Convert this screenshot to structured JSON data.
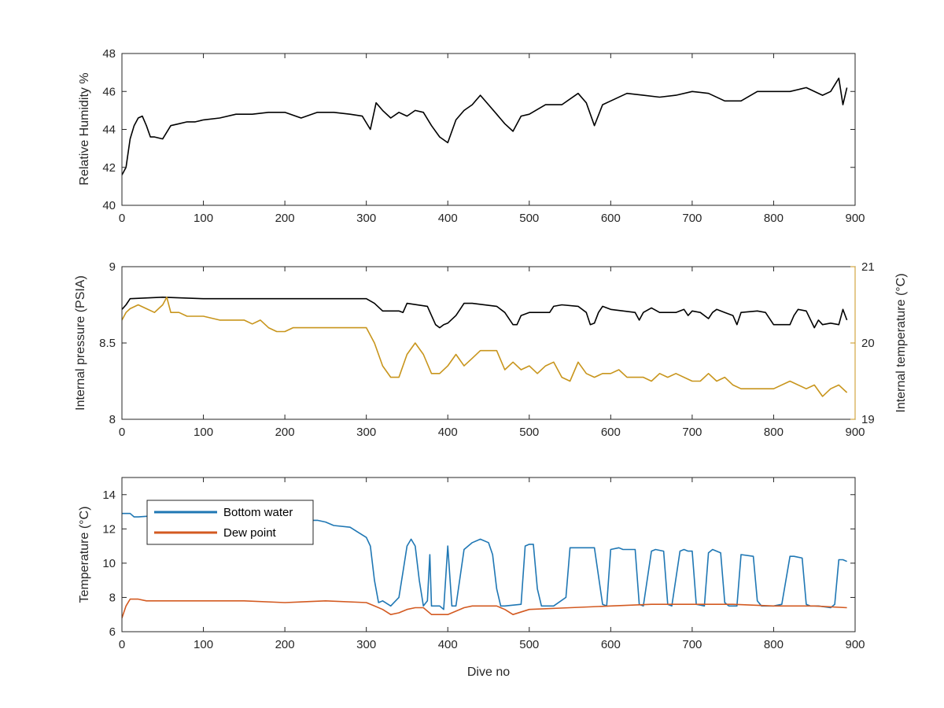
{
  "colors": {
    "black": "#000000",
    "gold": "#c8951c",
    "blue": "#1f77b4",
    "orange": "#d35a21",
    "axis": "#262626"
  },
  "chart_data": [
    {
      "type": "line",
      "xlim": [
        0,
        900
      ],
      "ylim": [
        40,
        48
      ],
      "xticks": [
        0,
        100,
        200,
        300,
        400,
        500,
        600,
        700,
        800,
        900
      ],
      "yticks": [
        40,
        42,
        44,
        46,
        48
      ],
      "xlabel": "",
      "ylabel": "Relative Humidity %",
      "grid": false,
      "series": [
        {
          "color": "#000000",
          "x": [
            0,
            5,
            10,
            15,
            20,
            25,
            30,
            35,
            40,
            50,
            60,
            70,
            80,
            90,
            100,
            120,
            140,
            160,
            180,
            200,
            220,
            240,
            260,
            280,
            295,
            305,
            312,
            320,
            330,
            340,
            350,
            360,
            370,
            380,
            390,
            400,
            410,
            420,
            430,
            440,
            450,
            460,
            470,
            480,
            490,
            500,
            520,
            540,
            560,
            570,
            580,
            590,
            600,
            620,
            640,
            660,
            680,
            700,
            720,
            740,
            760,
            780,
            800,
            820,
            840,
            860,
            870,
            880,
            885,
            890
          ],
          "y": [
            41.6,
            42.0,
            43.5,
            44.2,
            44.6,
            44.7,
            44.2,
            43.6,
            43.6,
            43.5,
            44.2,
            44.3,
            44.4,
            44.4,
            44.5,
            44.6,
            44.8,
            44.8,
            44.9,
            44.9,
            44.6,
            44.9,
            44.9,
            44.8,
            44.7,
            44.0,
            45.4,
            45.0,
            44.6,
            44.9,
            44.7,
            45.0,
            44.9,
            44.2,
            43.6,
            43.3,
            44.5,
            45.0,
            45.3,
            45.8,
            45.3,
            44.8,
            44.3,
            43.9,
            44.7,
            44.8,
            45.3,
            45.3,
            45.9,
            45.4,
            44.2,
            45.3,
            45.5,
            45.9,
            45.8,
            45.7,
            45.8,
            46.0,
            45.9,
            45.5,
            45.5,
            46.0,
            46.0,
            46.0,
            46.2,
            45.8,
            46.0,
            46.7,
            45.3,
            46.2
          ]
        }
      ]
    },
    {
      "type": "line",
      "xlim": [
        0,
        900
      ],
      "ylim": [
        8,
        9
      ],
      "ylim_right": [
        19,
        21
      ],
      "xticks": [
        0,
        100,
        200,
        300,
        400,
        500,
        600,
        700,
        800,
        900
      ],
      "yticks": [
        8,
        8.5,
        9
      ],
      "yticks_right": [
        19,
        20,
        21
      ],
      "xlabel": "",
      "ylabel": "Internal pressure (PSIA)",
      "ylabel_right": "Internal temperature (°C)",
      "grid": false,
      "series": [
        {
          "color": "#000000",
          "axis": "left",
          "x": [
            0,
            5,
            10,
            50,
            100,
            150,
            200,
            250,
            300,
            310,
            320,
            340,
            345,
            350,
            375,
            380,
            385,
            390,
            395,
            400,
            410,
            415,
            420,
            430,
            460,
            470,
            480,
            485,
            490,
            500,
            525,
            530,
            540,
            560,
            570,
            575,
            580,
            585,
            590,
            600,
            630,
            635,
            640,
            650,
            660,
            680,
            690,
            695,
            700,
            710,
            720,
            725,
            730,
            740,
            750,
            755,
            760,
            780,
            790,
            800,
            810,
            820,
            825,
            830,
            840,
            850,
            855,
            860,
            870,
            880,
            885,
            890
          ],
          "y": [
            8.72,
            8.75,
            8.79,
            8.8,
            8.79,
            8.79,
            8.79,
            8.79,
            8.79,
            8.76,
            8.71,
            8.71,
            8.7,
            8.76,
            8.74,
            8.68,
            8.62,
            8.6,
            8.62,
            8.63,
            8.68,
            8.72,
            8.76,
            8.76,
            8.74,
            8.7,
            8.62,
            8.62,
            8.68,
            8.7,
            8.7,
            8.74,
            8.75,
            8.74,
            8.7,
            8.62,
            8.63,
            8.7,
            8.74,
            8.72,
            8.7,
            8.65,
            8.7,
            8.73,
            8.7,
            8.7,
            8.72,
            8.68,
            8.71,
            8.7,
            8.66,
            8.7,
            8.72,
            8.7,
            8.68,
            8.62,
            8.7,
            8.71,
            8.7,
            8.62,
            8.62,
            8.62,
            8.68,
            8.72,
            8.71,
            8.6,
            8.65,
            8.62,
            8.63,
            8.62,
            8.72,
            8.65
          ]
        },
        {
          "color": "#c8951c",
          "axis": "right",
          "x": [
            0,
            5,
            10,
            20,
            30,
            40,
            50,
            55,
            60,
            70,
            80,
            100,
            120,
            140,
            150,
            160,
            170,
            180,
            190,
            200,
            210,
            250,
            290,
            300,
            310,
            320,
            330,
            340,
            350,
            360,
            370,
            380,
            390,
            400,
            410,
            420,
            430,
            440,
            450,
            460,
            470,
            480,
            490,
            500,
            510,
            520,
            530,
            540,
            550,
            560,
            570,
            580,
            590,
            600,
            610,
            620,
            630,
            640,
            650,
            660,
            670,
            680,
            700,
            710,
            720,
            730,
            740,
            750,
            760,
            780,
            800,
            820,
            840,
            850,
            860,
            870,
            880,
            890
          ],
          "y": [
            20.3,
            20.4,
            20.45,
            20.5,
            20.45,
            20.4,
            20.5,
            20.6,
            20.4,
            20.4,
            20.35,
            20.35,
            20.3,
            20.3,
            20.3,
            20.25,
            20.3,
            20.2,
            20.15,
            20.15,
            20.2,
            20.2,
            20.2,
            20.2,
            20.0,
            19.7,
            19.55,
            19.55,
            19.85,
            20.0,
            19.85,
            19.6,
            19.6,
            19.7,
            19.85,
            19.7,
            19.8,
            19.9,
            19.9,
            19.9,
            19.65,
            19.75,
            19.65,
            19.7,
            19.6,
            19.7,
            19.75,
            19.55,
            19.5,
            19.75,
            19.6,
            19.55,
            19.6,
            19.6,
            19.65,
            19.55,
            19.55,
            19.55,
            19.5,
            19.6,
            19.55,
            19.6,
            19.5,
            19.5,
            19.6,
            19.5,
            19.55,
            19.45,
            19.4,
            19.4,
            19.4,
            19.5,
            19.4,
            19.45,
            19.3,
            19.4,
            19.45,
            19.35
          ]
        }
      ]
    },
    {
      "type": "line",
      "xlim": [
        0,
        900
      ],
      "ylim": [
        6,
        15
      ],
      "xticks": [
        0,
        100,
        200,
        300,
        400,
        500,
        600,
        700,
        800,
        900
      ],
      "yticks": [
        6,
        8,
        10,
        12,
        14
      ],
      "xlabel": "Dive no",
      "ylabel": "Temperature (°C)",
      "legend": "top-left",
      "grid": false,
      "series": [
        {
          "name": "Bottom water",
          "color": "#1f77b4",
          "x": [
            0,
            10,
            15,
            20,
            50,
            100,
            150,
            200,
            220,
            240,
            250,
            260,
            280,
            290,
            300,
            305,
            310,
            315,
            320,
            330,
            340,
            345,
            350,
            355,
            360,
            365,
            370,
            375,
            378,
            380,
            385,
            390,
            395,
            400,
            405,
            410,
            420,
            430,
            440,
            450,
            455,
            460,
            465,
            470,
            490,
            495,
            500,
            505,
            510,
            515,
            520,
            530,
            545,
            550,
            555,
            560,
            580,
            590,
            595,
            600,
            610,
            615,
            630,
            635,
            640,
            650,
            655,
            665,
            670,
            675,
            685,
            690,
            695,
            700,
            705,
            715,
            720,
            725,
            735,
            740,
            745,
            755,
            760,
            775,
            780,
            785,
            795,
            800,
            810,
            820,
            825,
            835,
            840,
            845,
            855,
            870,
            875,
            880,
            885,
            890
          ],
          "y": [
            12.9,
            12.9,
            12.7,
            12.7,
            12.8,
            12.7,
            12.7,
            12.6,
            12.5,
            12.5,
            12.4,
            12.2,
            12.1,
            11.8,
            11.5,
            11.0,
            9.0,
            7.7,
            7.8,
            7.5,
            8.0,
            9.5,
            11.0,
            11.4,
            11.0,
            9.0,
            7.5,
            7.8,
            10.5,
            7.5,
            7.5,
            7.5,
            7.3,
            11.0,
            7.5,
            7.5,
            10.8,
            11.2,
            11.4,
            11.2,
            10.5,
            8.5,
            7.5,
            7.5,
            7.6,
            11.0,
            11.1,
            11.1,
            8.5,
            7.5,
            7.5,
            7.5,
            8.0,
            10.9,
            10.9,
            10.9,
            10.9,
            7.6,
            7.5,
            10.8,
            10.9,
            10.8,
            10.8,
            7.6,
            7.5,
            10.7,
            10.8,
            10.7,
            7.6,
            7.5,
            10.7,
            10.8,
            10.7,
            10.7,
            7.6,
            7.5,
            10.6,
            10.8,
            10.6,
            7.7,
            7.5,
            7.5,
            10.5,
            10.4,
            7.8,
            7.5,
            7.5,
            7.5,
            7.6,
            10.4,
            10.4,
            10.3,
            7.6,
            7.5,
            7.5,
            7.4,
            7.6,
            10.2,
            10.2,
            10.1
          ]
        },
        {
          "name": "Dew point",
          "color": "#d35a21",
          "x": [
            0,
            5,
            10,
            20,
            30,
            50,
            100,
            150,
            200,
            250,
            300,
            310,
            320,
            330,
            340,
            350,
            360,
            370,
            380,
            390,
            400,
            410,
            420,
            430,
            440,
            460,
            470,
            480,
            500,
            550,
            600,
            650,
            700,
            750,
            800,
            850,
            890
          ],
          "y": [
            6.8,
            7.5,
            7.9,
            7.9,
            7.8,
            7.8,
            7.8,
            7.8,
            7.7,
            7.8,
            7.7,
            7.5,
            7.3,
            7.0,
            7.1,
            7.3,
            7.4,
            7.4,
            7.0,
            7.0,
            7.0,
            7.2,
            7.4,
            7.5,
            7.5,
            7.5,
            7.3,
            7.0,
            7.3,
            7.4,
            7.5,
            7.6,
            7.6,
            7.6,
            7.5,
            7.5,
            7.4
          ]
        }
      ]
    }
  ]
}
